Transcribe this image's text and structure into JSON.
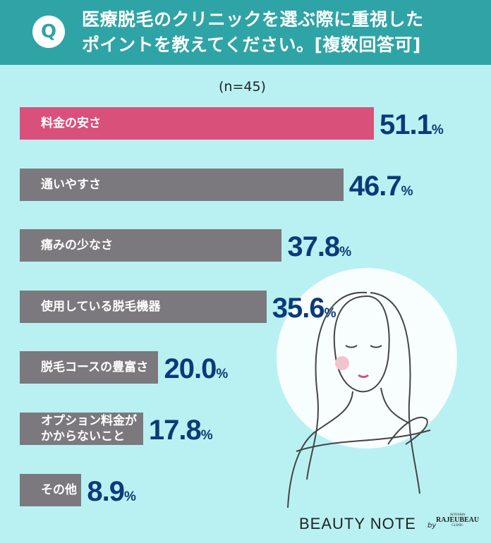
{
  "chart_data": {
    "type": "bar",
    "title": "医療脱毛のクリニックを選ぶ際に重視した\nポイントを教えてください。[複数回答可]",
    "badge": "Q",
    "subtitle": "(n=45)",
    "categories": [
      "料金の安さ",
      "通いやすさ",
      "痛みの少なさ",
      "使用している脱毛機器",
      "脱毛コースの豊富さ",
      "オプション料金が\nかからないこと",
      "その他"
    ],
    "values": [
      51.1,
      46.7,
      37.8,
      35.6,
      20.0,
      17.8,
      8.9
    ],
    "value_labels": [
      "51.1",
      "46.7",
      "37.8",
      "35.6",
      "20.0",
      "17.8",
      "8.9"
    ],
    "unit": "%",
    "colors": [
      "#d9507a",
      "#7b797d",
      "#7b797d",
      "#7b797d",
      "#7b797d",
      "#7b797d",
      "#7b797d"
    ],
    "brand": "BEAUTY NOTE",
    "brand_by": "by",
    "clinic_top": "AOYAMA",
    "clinic": "RAJEUBEAU",
    "clinic_bottom": "CLINIC"
  }
}
